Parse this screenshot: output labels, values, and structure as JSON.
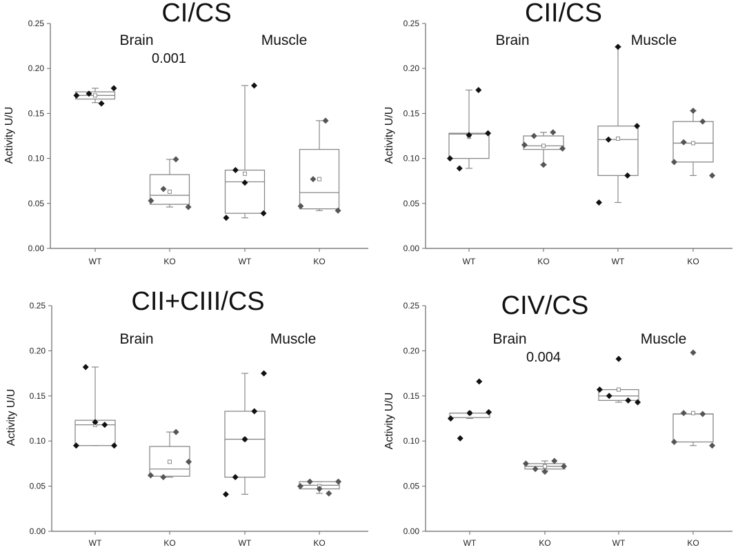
{
  "chart_data": [
    {
      "type": "box",
      "title": "CI/CS",
      "ylabel": "Activity U/U",
      "ylim": [
        0,
        0.25
      ],
      "yticks": [
        "0.00",
        "0.05",
        "0.10",
        "0.15",
        "0.20",
        "0.25"
      ],
      "categories": [
        "WT",
        "KO",
        "WT",
        "KO"
      ],
      "groups": [
        {
          "label": "Brain"
        },
        {
          "label": "Muscle"
        }
      ],
      "pvalue": "0.001",
      "boxes": [
        {
          "q1": 0.166,
          "median": 0.17,
          "q3": 0.174,
          "mean": 0.17,
          "whisker_low": 0.162,
          "whisker_high": 0.178,
          "points": [
            0.17,
            0.172,
            0.161,
            0.178
          ]
        },
        {
          "q1": 0.049,
          "median": 0.059,
          "q3": 0.082,
          "mean": 0.063,
          "whisker_low": 0.046,
          "whisker_high": 0.099,
          "points": [
            0.053,
            0.066,
            0.099,
            0.046
          ]
        },
        {
          "q1": 0.039,
          "median": 0.074,
          "q3": 0.087,
          "mean": 0.083,
          "whisker_low": 0.034,
          "whisker_high": 0.181,
          "points": [
            0.034,
            0.087,
            0.073,
            0.181,
            0.039
          ]
        },
        {
          "q1": 0.044,
          "median": 0.062,
          "q3": 0.11,
          "mean": 0.077,
          "whisker_low": 0.042,
          "whisker_high": 0.142,
          "points": [
            0.047,
            0.077,
            0.142,
            0.042
          ]
        }
      ]
    },
    {
      "type": "box",
      "title": "CII/CS",
      "ylabel": "Activity U/U",
      "ylim": [
        0,
        0.25
      ],
      "yticks": [
        "0.00",
        "0.05",
        "0.10",
        "0.15",
        "0.20",
        "0.25"
      ],
      "categories": [
        "WT",
        "KO",
        "WT",
        "KO"
      ],
      "groups": [
        {
          "label": "Brain"
        },
        {
          "label": "Muscle"
        }
      ],
      "pvalue": "",
      "boxes": [
        {
          "q1": 0.1,
          "median": 0.127,
          "q3": 0.128,
          "mean": 0.124,
          "whisker_low": 0.089,
          "whisker_high": 0.176,
          "points": [
            0.1,
            0.089,
            0.126,
            0.176,
            0.128
          ]
        },
        {
          "q1": 0.11,
          "median": 0.114,
          "q3": 0.125,
          "mean": 0.114,
          "whisker_low": 0.093,
          "whisker_high": 0.129,
          "points": [
            0.115,
            0.125,
            0.093,
            0.129,
            0.111
          ]
        },
        {
          "q1": 0.081,
          "median": 0.121,
          "q3": 0.136,
          "mean": 0.122,
          "whisker_low": 0.051,
          "whisker_high": 0.224,
          "points": [
            0.051,
            0.121,
            0.224,
            0.081,
            0.136
          ]
        },
        {
          "q1": 0.096,
          "median": 0.117,
          "q3": 0.141,
          "mean": 0.117,
          "whisker_low": 0.081,
          "whisker_high": 0.153,
          "points": [
            0.096,
            0.118,
            0.153,
            0.141,
            0.081
          ]
        }
      ]
    },
    {
      "type": "box",
      "title": "CII+CIII/CS",
      "ylabel": "Activity U/U",
      "ylim": [
        0,
        0.25
      ],
      "yticks": [
        "0.00",
        "0.05",
        "0.10",
        "0.15",
        "0.20",
        "0.25"
      ],
      "categories": [
        "WT",
        "KO",
        "WT",
        "KO"
      ],
      "groups": [
        {
          "label": "Brain"
        },
        {
          "label": "Muscle"
        }
      ],
      "pvalue": "",
      "boxes": [
        {
          "q1": 0.095,
          "median": 0.118,
          "q3": 0.123,
          "mean": 0.118,
          "whisker_low": 0.095,
          "whisker_high": 0.182,
          "points": [
            0.095,
            0.182,
            0.121,
            0.118,
            0.095
          ]
        },
        {
          "q1": 0.061,
          "median": 0.069,
          "q3": 0.094,
          "mean": 0.077,
          "whisker_low": 0.06,
          "whisker_high": 0.11,
          "points": [
            0.062,
            0.06,
            0.11,
            0.077
          ]
        },
        {
          "q1": 0.06,
          "median": 0.102,
          "q3": 0.133,
          "mean": 0.102,
          "whisker_low": 0.041,
          "whisker_high": 0.175,
          "points": [
            0.041,
            0.06,
            0.102,
            0.133,
            0.175
          ]
        },
        {
          "q1": 0.047,
          "median": 0.051,
          "q3": 0.055,
          "mean": 0.05,
          "whisker_low": 0.042,
          "whisker_high": 0.055,
          "points": [
            0.05,
            0.055,
            0.047,
            0.042,
            0.055
          ]
        }
      ]
    },
    {
      "type": "box",
      "title": "CIV/CS",
      "ylabel": "Activity U/U",
      "ylim": [
        0,
        0.25
      ],
      "yticks": [
        "0.00",
        "0.05",
        "0.10",
        "0.15",
        "0.20",
        "0.25"
      ],
      "categories": [
        "WT",
        "KO",
        "WT",
        "KO"
      ],
      "groups": [
        {
          "label": "Brain"
        },
        {
          "label": "Muscle"
        }
      ],
      "pvalue": "0.004",
      "boxes": [
        {
          "q1": 0.126,
          "median": 0.131,
          "q3": 0.131,
          "mean": 0.131,
          "whisker_low": 0.125,
          "whisker_high": 0.131,
          "points": [
            0.125,
            0.103,
            0.131,
            0.166,
            0.132
          ]
        },
        {
          "q1": 0.069,
          "median": 0.072,
          "q3": 0.075,
          "mean": 0.072,
          "whisker_low": 0.067,
          "whisker_high": 0.078,
          "points": [
            0.075,
            0.069,
            0.066,
            0.078,
            0.072
          ]
        },
        {
          "q1": 0.145,
          "median": 0.15,
          "q3": 0.157,
          "mean": 0.157,
          "whisker_low": 0.143,
          "whisker_high": 0.157,
          "points": [
            0.157,
            0.15,
            0.191,
            0.145,
            0.143
          ]
        },
        {
          "q1": 0.099,
          "median": 0.13,
          "q3": 0.13,
          "mean": 0.131,
          "whisker_low": 0.095,
          "whisker_high": 0.13,
          "points": [
            0.099,
            0.131,
            0.198,
            0.13,
            0.095
          ]
        }
      ]
    }
  ],
  "colors": {
    "wt_point": "#111111",
    "ko_point": "#555555",
    "box_stroke": "#888888",
    "axis": "#666666",
    "mean_marker": "#888888"
  }
}
